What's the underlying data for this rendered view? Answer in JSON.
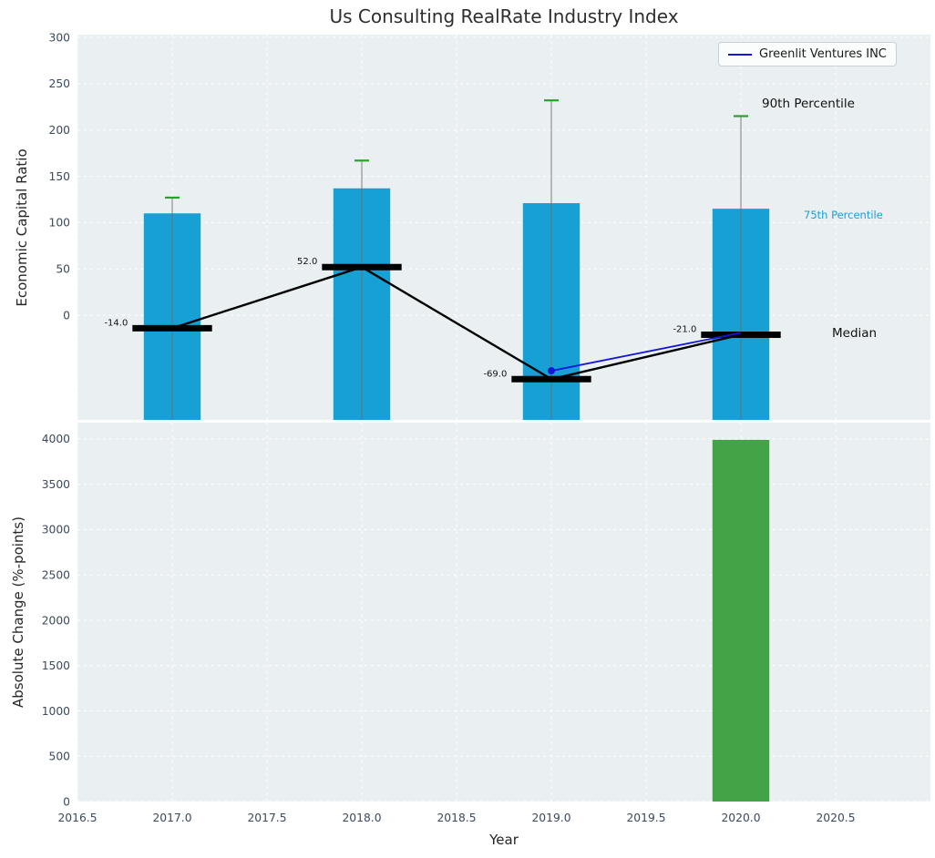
{
  "figure": {
    "title": "Us Consulting RealRate Industry Index",
    "xlabel": "Year",
    "ylabel_top": "Economic Capital Ratio",
    "ylabel_bottom": "Absolute Change (%-points)"
  },
  "legend": {
    "label": "Greenlit Ventures INC"
  },
  "annotations": {
    "p90_label": "90th Percentile",
    "p75_label": "75th Percentile",
    "median_label": "Median"
  },
  "colors": {
    "bar_blue": "#16a0d4",
    "bar_green": "#43a447",
    "whisker_cap_green": "#2ca02c",
    "whisker_line": "#6f6f6f",
    "median_black": "#000000",
    "company_blue": "#1414dd",
    "plot_background": "#eaeff1",
    "grid": "#ffffff",
    "tick_label": "#3b4a5e",
    "p75_label_color": "#1b9fd0",
    "annotation_black": "#111111"
  },
  "chart_data": [
    {
      "type": "bar",
      "subplot": "top",
      "title": "Us Consulting RealRate Industry Index",
      "ylabel": "Economic Capital Ratio",
      "categories": [
        2017,
        2018,
        2019,
        2020
      ],
      "bar_values_75th_percentile": [
        110,
        137,
        121,
        115
      ],
      "whisker_values_90th_percentile": [
        127,
        167,
        232,
        215
      ],
      "median_values": [
        -14,
        52,
        -69,
        -21
      ],
      "median_labels": [
        "-14.0",
        "52.0",
        "-69.0",
        "-21.0"
      ],
      "series": [
        {
          "name": "Greenlit Ventures INC",
          "type": "line",
          "x": [
            2019,
            2020
          ],
          "y": [
            -60,
            -19
          ]
        }
      ],
      "xlim": [
        2016.5,
        2021.0
      ],
      "ylim": [
        -113,
        303
      ],
      "yticks": [
        0,
        50,
        100,
        150,
        200,
        250,
        300
      ],
      "xticks": [
        2016.5,
        2017.0,
        2017.5,
        2018.0,
        2018.5,
        2019.0,
        2019.5,
        2020.0,
        2020.5
      ],
      "xtick_labels": [
        "2016.5",
        "2017.0",
        "2017.5",
        "2018.0",
        "2018.5",
        "2019.0",
        "2019.5",
        "2020.0",
        "2020.5"
      ],
      "grid": true,
      "legend_position": "upper right",
      "bar_width_years": 0.3,
      "median_segment_halfwidth_years": 0.21
    },
    {
      "type": "bar",
      "subplot": "bottom",
      "xlabel": "Year",
      "ylabel": "Absolute Change (%-points)",
      "categories": [
        2020
      ],
      "values": [
        3990
      ],
      "xlim": [
        2016.5,
        2021.0
      ],
      "ylim": [
        0,
        4180
      ],
      "yticks": [
        0,
        500,
        1000,
        1500,
        2000,
        2500,
        3000,
        3500,
        4000
      ],
      "xticks": [
        2016.5,
        2017.0,
        2017.5,
        2018.0,
        2018.5,
        2019.0,
        2019.5,
        2020.0,
        2020.5
      ],
      "xtick_labels": [
        "2016.5",
        "2017.0",
        "2017.5",
        "2018.0",
        "2018.5",
        "2019.0",
        "2019.5",
        "2020.0",
        "2020.5"
      ],
      "grid": true,
      "bar_width_years": 0.3
    }
  ]
}
